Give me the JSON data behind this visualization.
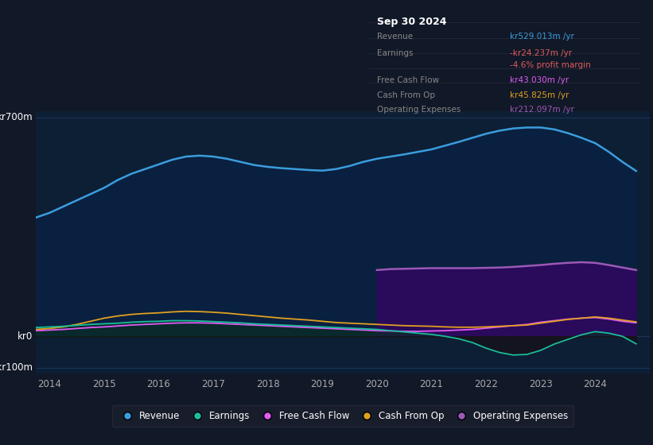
{
  "bg_color": "#111827",
  "plot_bg_color": "#0d1f35",
  "grid_color": "#1e3a5f",
  "title": "Sep 30 2024",
  "table_bg": "#0a0f1a",
  "table_border": "#2a2a3a",
  "rows": [
    {
      "label": "Revenue",
      "value": "kr529.013m /yr",
      "vcolor": "#3b9ddd"
    },
    {
      "label": "Earnings",
      "value": "-kr24.237m /yr",
      "vcolor": "#e05c5c"
    },
    {
      "label": "",
      "value": "-4.6% profit margin",
      "vcolor": "#e05c5c"
    },
    {
      "label": "Free Cash Flow",
      "value": "kr43.030m /yr",
      "vcolor": "#e05cf5"
    },
    {
      "label": "Cash From Op",
      "value": "kr45.825m /yr",
      "vcolor": "#e0a020"
    },
    {
      "label": "Operating Expenses",
      "value": "kr212.097m /yr",
      "vcolor": "#9b59b6"
    }
  ],
  "legend": [
    {
      "label": "Revenue",
      "color": "#3b9ddd"
    },
    {
      "label": "Earnings",
      "color": "#1abc9c"
    },
    {
      "label": "Free Cash Flow",
      "color": "#e05cf5"
    },
    {
      "label": "Cash From Op",
      "color": "#e0a020"
    },
    {
      "label": "Operating Expenses",
      "color": "#9b59b6"
    }
  ],
  "revenue_color": "#3b9ddd",
  "revenue_fill": "#0a2040",
  "opex_color": "#9b59b6",
  "opex_fill": "#2a0a5a",
  "earnings_color": "#1abc9c",
  "earnings_fill_pos": "#0a3020",
  "earnings_fill_neg": "#1a0a0a",
  "fcf_color": "#e05cf5",
  "cfo_color": "#e0a020"
}
